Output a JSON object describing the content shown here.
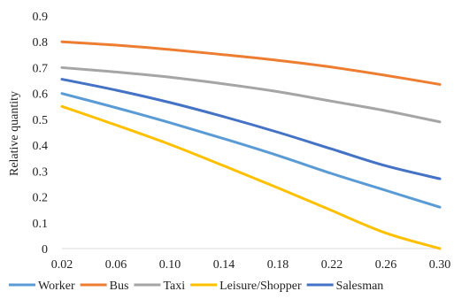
{
  "chart_data": {
    "type": "line",
    "title": "",
    "xlabel": "",
    "ylabel": "Relative quantity",
    "x": [
      0.02,
      0.06,
      0.1,
      0.14,
      0.18,
      0.22,
      0.26,
      0.3
    ],
    "x_tick_labels": [
      "0.02",
      "0.06",
      "0.10",
      "0.14",
      "0.18",
      "0.22",
      "0.26",
      "0.30"
    ],
    "y_tick_labels": [
      "0",
      "0.1",
      "0.2",
      "0.3",
      "0.4",
      "0.5",
      "0.6",
      "0.7",
      "0.8",
      "0.9"
    ],
    "xlim": [
      0.02,
      0.3
    ],
    "ylim": [
      0,
      0.9
    ],
    "grid": false,
    "legend_position": "bottom",
    "series": [
      {
        "name": "Worker",
        "color": "#5B9BD5",
        "values": [
          0.6,
          0.545,
          0.487,
          0.425,
          0.36,
          0.29,
          0.225,
          0.16
        ]
      },
      {
        "name": "Bus",
        "color": "#ED7D31",
        "values": [
          0.8,
          0.787,
          0.77,
          0.75,
          0.728,
          0.702,
          0.67,
          0.635
        ]
      },
      {
        "name": "Taxi",
        "color": "#A5A5A5",
        "values": [
          0.7,
          0.683,
          0.663,
          0.637,
          0.607,
          0.57,
          0.533,
          0.49
        ]
      },
      {
        "name": "Leisure/Shopper",
        "color": "#FFC000",
        "values": [
          0.55,
          0.478,
          0.403,
          0.32,
          0.235,
          0.147,
          0.06,
          0.0
        ]
      },
      {
        "name": "Salesman",
        "color": "#4472C4",
        "values": [
          0.655,
          0.613,
          0.565,
          0.51,
          0.45,
          0.385,
          0.32,
          0.27
        ]
      }
    ]
  }
}
